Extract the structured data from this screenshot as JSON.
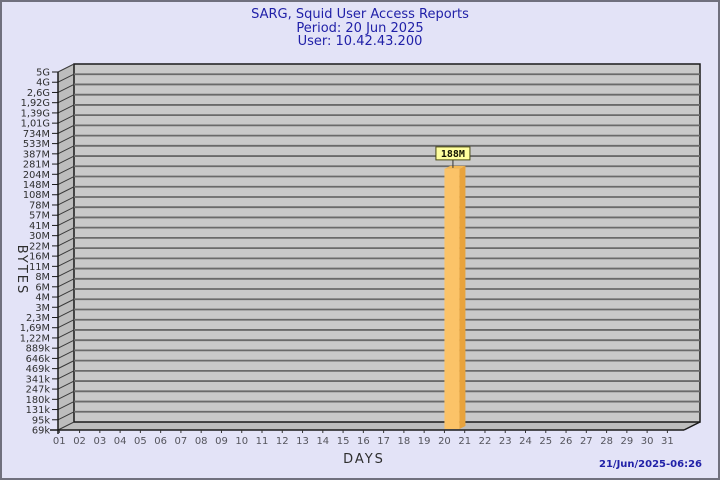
{
  "header": {
    "title": "SARG, Squid User Access Reports",
    "period": "Period: 20 Jun 2025",
    "user": "User: 10.42.43.200"
  },
  "footer": {
    "timestamp": "21/Jun/2025-06:26"
  },
  "chart_data": {
    "type": "bar",
    "title": "SARG, Squid User Access Reports",
    "subtitle": [
      "Period: 20 Jun 2025",
      "User: 10.42.43.200"
    ],
    "xlabel": "DAYS",
    "ylabel": "BYTES",
    "y_scale": "log",
    "grid": true,
    "legend": null,
    "y_tick_labels": [
      "5G",
      "4G",
      "2,6G",
      "1,92G",
      "1,39G",
      "1,01G",
      "734M",
      "533M",
      "387M",
      "281M",
      "204M",
      "148M",
      "108M",
      "78M",
      "57M",
      "41M",
      "30M",
      "22M",
      "16M",
      "11M",
      "8M",
      "6M",
      "4M",
      "3M",
      "2,3M",
      "1,69M",
      "1,22M",
      "889k",
      "646k",
      "469k",
      "341k",
      "247k",
      "180k",
      "131k",
      "95k",
      "69k"
    ],
    "categories": [
      "01",
      "02",
      "03",
      "04",
      "05",
      "06",
      "07",
      "08",
      "09",
      "10",
      "11",
      "12",
      "13",
      "14",
      "15",
      "16",
      "17",
      "18",
      "19",
      "20",
      "21",
      "22",
      "23",
      "24",
      "25",
      "26",
      "27",
      "28",
      "29",
      "30",
      "31"
    ],
    "bars": [
      {
        "day": "20",
        "value_label": "188M"
      }
    ],
    "colors": {
      "page_bg": "#e3e3f7",
      "border": "#70707e",
      "plot_bg": "#c9c9c9",
      "wall_bg": "#bdbdbd",
      "grid": "#6a6a6a",
      "frame": "#1a1a1a",
      "title_text": "#2121a8",
      "axis_text": "#2e2e2e",
      "day_text": "#54545c",
      "bar_front": "#fbc368",
      "bar_side": "#e8a33c",
      "bar_top": "#f3b854",
      "value_box_bg": "#ffff9e",
      "value_box_border": "#4a4a14",
      "value_text": "#111100",
      "timestamp_text": "#2121a8"
    }
  }
}
